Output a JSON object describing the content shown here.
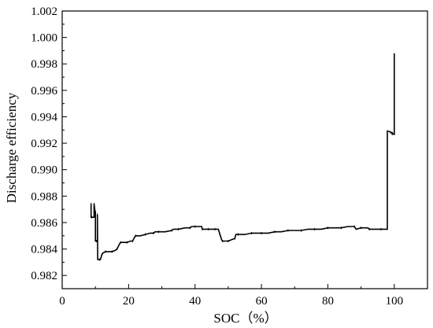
{
  "chart_data": {
    "type": "line",
    "title": "",
    "xlabel": "SOC（%）",
    "ylabel": "Discharge efficiency",
    "xlim": [
      0,
      110
    ],
    "ylim": [
      0.981,
      1.002
    ],
    "xticks": [
      0,
      20,
      40,
      60,
      80,
      100
    ],
    "xtick_labels": [
      "0",
      "20",
      "40",
      "60",
      "80",
      "100"
    ],
    "yticks": [
      0.982,
      0.984,
      0.986,
      0.988,
      0.99,
      0.992,
      0.994,
      0.996,
      0.998,
      1.0,
      1.002
    ],
    "ytick_labels": [
      "0.982",
      "0.984",
      "0.986",
      "0.988",
      "0.990",
      "0.992",
      "0.994",
      "0.996",
      "0.998",
      "1.000",
      "1.002"
    ],
    "grid": false,
    "legend": "none",
    "line_color": "#000000",
    "series": [
      {
        "x": [
          8.7,
          8.7,
          8.9,
          9.6,
          9.6,
          9.9,
          10.0,
          10.0,
          10.3,
          10.6,
          10.6,
          10.7,
          11.3,
          11.5,
          12.0,
          12.3,
          13.0,
          14.0,
          15.0,
          16.0,
          16.5,
          17.3,
          17.6,
          18.5,
          19.5,
          20.5,
          21.2,
          21.8,
          22.1,
          23.5,
          25.0,
          26.5,
          27.5,
          28.0,
          29.0,
          31.0,
          33.0,
          33.5,
          35.0,
          37.0,
          38.5,
          39.0,
          40.0,
          42.0,
          42.2,
          43.0,
          44.0,
          45.0,
          46.0,
          47.0,
          47.5,
          48.0,
          48.3,
          49.0,
          50.0,
          51.0,
          52.0,
          52.3,
          53.0,
          55.0,
          57.0,
          59.0,
          60.0,
          62.0,
          64.0,
          66.0,
          68.0,
          70.0,
          72.0,
          74.0,
          76.0,
          78.0,
          80.0,
          82.0,
          84.0,
          86.0,
          88.0,
          88.5,
          90.0,
          92.0,
          92.5,
          94.0,
          96.0,
          97.9,
          97.9,
          98.5,
          99.0,
          99.4,
          99.4,
          99.8,
          100.0,
          100.0,
          100.0
        ],
        "y": [
          0.9874,
          0.9864,
          0.9864,
          0.9864,
          0.9874,
          0.9868,
          0.9868,
          0.9846,
          0.9846,
          0.9846,
          0.9866,
          0.9832,
          0.9832,
          0.9832,
          0.9836,
          0.9837,
          0.9838,
          0.9838,
          0.9838,
          0.9839,
          0.984,
          0.9844,
          0.9845,
          0.9845,
          0.9845,
          0.9846,
          0.9846,
          0.9849,
          0.985,
          0.985,
          0.9851,
          0.9852,
          0.9852,
          0.9853,
          0.9853,
          0.9853,
          0.9854,
          0.9855,
          0.9855,
          0.9856,
          0.9856,
          0.9857,
          0.9857,
          0.9857,
          0.9855,
          0.9855,
          0.9855,
          0.9855,
          0.9855,
          0.9855,
          0.9851,
          0.9847,
          0.9846,
          0.9846,
          0.9846,
          0.9847,
          0.9848,
          0.9851,
          0.9851,
          0.9851,
          0.9852,
          0.9852,
          0.9852,
          0.9852,
          0.9853,
          0.9853,
          0.9854,
          0.9854,
          0.9854,
          0.9855,
          0.9855,
          0.9855,
          0.9856,
          0.9856,
          0.9856,
          0.9857,
          0.9857,
          0.9855,
          0.9856,
          0.9856,
          0.9855,
          0.9855,
          0.9855,
          0.9855,
          0.9929,
          0.9929,
          0.9928,
          0.9928,
          0.9927,
          0.9927,
          0.9927,
          0.9988,
          0.9927
        ]
      }
    ]
  }
}
